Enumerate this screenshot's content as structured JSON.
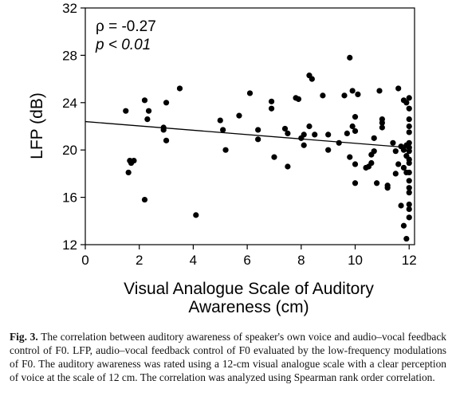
{
  "chart_data": {
    "type": "scatter",
    "xlabel_line1": "Visual Analogue Scale of Auditory",
    "xlabel_line2": "Awareness (cm)",
    "ylabel": "LFP (dB)",
    "xlim": [
      0,
      12.2
    ],
    "ylim": [
      12,
      32
    ],
    "xticks": [
      0,
      2,
      4,
      6,
      8,
      10,
      12
    ],
    "yticks": [
      12,
      16,
      20,
      24,
      28,
      32
    ],
    "rho_text": "ρ = -0.27",
    "p_text": "p < 0.01",
    "regression": {
      "x": [
        0,
        12
      ],
      "y": [
        22.4,
        20.2
      ]
    },
    "points": [
      [
        1.5,
        23.3
      ],
      [
        1.6,
        18.1
      ],
      [
        1.65,
        19.1
      ],
      [
        1.7,
        18.9
      ],
      [
        1.8,
        19.1
      ],
      [
        2.2,
        24.2
      ],
      [
        2.3,
        22.6
      ],
      [
        2.35,
        23.3
      ],
      [
        2.2,
        15.8
      ],
      [
        2.9,
        21.9
      ],
      [
        2.9,
        21.7
      ],
      [
        3.0,
        20.8
      ],
      [
        3.0,
        24.0
      ],
      [
        3.5,
        25.2
      ],
      [
        4.1,
        14.5
      ],
      [
        5.0,
        22.5
      ],
      [
        5.1,
        21.7
      ],
      [
        5.2,
        20.0
      ],
      [
        5.7,
        22.9
      ],
      [
        6.1,
        24.8
      ],
      [
        6.4,
        21.7
      ],
      [
        6.4,
        20.9
      ],
      [
        6.9,
        24.1
      ],
      [
        6.9,
        23.5
      ],
      [
        7.0,
        19.4
      ],
      [
        7.4,
        21.8
      ],
      [
        7.5,
        21.4
      ],
      [
        7.5,
        18.6
      ],
      [
        7.8,
        24.4
      ],
      [
        7.9,
        24.3
      ],
      [
        8.0,
        21.0
      ],
      [
        8.1,
        21.3
      ],
      [
        8.1,
        20.4
      ],
      [
        8.3,
        22.0
      ],
      [
        8.3,
        26.3
      ],
      [
        8.4,
        26.0
      ],
      [
        8.5,
        21.3
      ],
      [
        8.8,
        24.6
      ],
      [
        9.0,
        21.3
      ],
      [
        9.0,
        20.0
      ],
      [
        9.4,
        20.6
      ],
      [
        9.6,
        24.6
      ],
      [
        9.7,
        21.4
      ],
      [
        9.8,
        27.8
      ],
      [
        9.8,
        19.4
      ],
      [
        9.9,
        25.0
      ],
      [
        9.9,
        22.0
      ],
      [
        10.0,
        22.8
      ],
      [
        10.0,
        21.6
      ],
      [
        10.0,
        18.8
      ],
      [
        10.0,
        17.2
      ],
      [
        10.1,
        24.7
      ],
      [
        10.4,
        18.5
      ],
      [
        10.5,
        18.6
      ],
      [
        10.6,
        19.6
      ],
      [
        10.6,
        18.9
      ],
      [
        10.7,
        21.0
      ],
      [
        10.7,
        19.9
      ],
      [
        10.8,
        17.2
      ],
      [
        10.9,
        25.0
      ],
      [
        11.0,
        22.3
      ],
      [
        11.0,
        21.9
      ],
      [
        11.0,
        22.6
      ],
      [
        11.2,
        17.0
      ],
      [
        11.2,
        16.8
      ],
      [
        11.4,
        20.6
      ],
      [
        11.5,
        19.9
      ],
      [
        11.5,
        18.0
      ],
      [
        11.6,
        25.2
      ],
      [
        11.6,
        18.8
      ],
      [
        11.7,
        20.3
      ],
      [
        11.7,
        15.3
      ],
      [
        11.8,
        24.2
      ],
      [
        11.8,
        20.0
      ],
      [
        11.8,
        18.5
      ],
      [
        11.8,
        13.6
      ],
      [
        11.9,
        18.1
      ],
      [
        11.9,
        12.5
      ],
      [
        12.0,
        24.4
      ],
      [
        12.0,
        23.5
      ],
      [
        12.0,
        22.6
      ],
      [
        12.0,
        22.0
      ],
      [
        12.0,
        21.5
      ],
      [
        12.0,
        20.6
      ],
      [
        12.0,
        20.2
      ],
      [
        12.0,
        19.9
      ],
      [
        12.0,
        19.2
      ],
      [
        12.0,
        18.9
      ],
      [
        12.0,
        18.1
      ],
      [
        12.0,
        17.4
      ],
      [
        12.0,
        16.8
      ],
      [
        12.0,
        16.4
      ],
      [
        12.0,
        15.4
      ],
      [
        12.0,
        15.0
      ],
      [
        12.0,
        14.3
      ],
      [
        11.9,
        24.0
      ],
      [
        11.9,
        20.4
      ],
      [
        11.9,
        19.5
      ]
    ]
  },
  "caption": {
    "label": "Fig. 3.",
    "text": " The correlation between auditory awareness of speaker's own voice and audio–vocal feedback control of F0. LFP, audio–vocal feedback control of F0 evaluated by the low-frequency modulations of F0. The auditory awareness was rated using a 12-cm visual analogue scale with a clear perception of voice at the scale of 12 cm. The correlation was analyzed using Spearman rank order correlation."
  }
}
